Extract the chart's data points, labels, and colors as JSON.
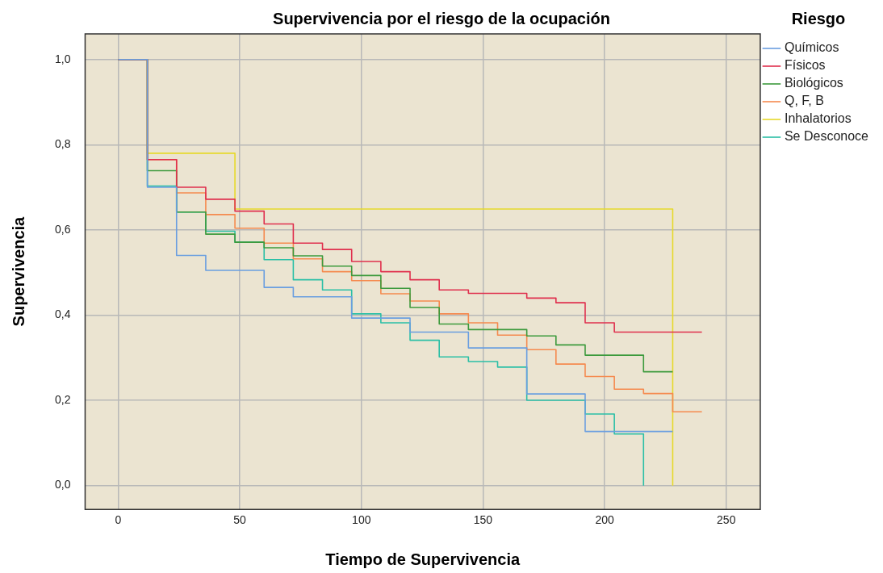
{
  "chart_data": {
    "type": "step",
    "title": "Supervivencia por el riesgo de la ocupación",
    "xlabel": "Tiempo de Supervivencia",
    "ylabel": "Supervivencia",
    "legend_title": "Riesgo",
    "legend": "right",
    "grid": true,
    "xlim": [
      -13.6,
      264
    ],
    "ylim": [
      -0.056,
      1.06
    ],
    "xticks": [
      0,
      50,
      100,
      150,
      200,
      250
    ],
    "yticks": [
      {
        "value": 0,
        "label": "0,0"
      },
      {
        "value": 0.2,
        "label": "0,2"
      },
      {
        "value": 0.4,
        "label": "0,4"
      },
      {
        "value": 0.6,
        "label": "0,6"
      },
      {
        "value": 0.8,
        "label": "0,8"
      },
      {
        "value": 1,
        "label": "1,0"
      }
    ],
    "series": [
      {
        "name": "Químicos",
        "color": "#6a9ee0",
        "x": [
          0,
          12,
          24,
          36,
          60,
          72,
          96,
          120,
          144,
          168,
          192,
          228
        ],
        "values": [
          1,
          0.7,
          0.54,
          0.505,
          0.465,
          0.443,
          0.393,
          0.36,
          0.323,
          0.215,
          0.127,
          0.127
        ]
      },
      {
        "name": "Físicos",
        "color": "#e0304e",
        "x": [
          0,
          12,
          24,
          36,
          48,
          60,
          72,
          84,
          96,
          108,
          120,
          132,
          144,
          168,
          180,
          192,
          204,
          240
        ],
        "values": [
          1,
          0.765,
          0.7,
          0.672,
          0.644,
          0.614,
          0.569,
          0.554,
          0.526,
          0.502,
          0.483,
          0.459,
          0.451,
          0.44,
          0.429,
          0.382,
          0.36,
          0.36
        ]
      },
      {
        "name": "Biológicos",
        "color": "#3d9a3d",
        "x": [
          0,
          12,
          24,
          36,
          48,
          60,
          72,
          84,
          96,
          108,
          120,
          132,
          144,
          168,
          180,
          192,
          216,
          228
        ],
        "values": [
          1,
          0.739,
          0.642,
          0.59,
          0.571,
          0.558,
          0.539,
          0.515,
          0.493,
          0.463,
          0.418,
          0.379,
          0.366,
          0.351,
          0.33,
          0.306,
          0.267,
          0.267
        ]
      },
      {
        "name": "Q, F, B",
        "color": "#f58a4f",
        "x": [
          0,
          12,
          24,
          36,
          48,
          60,
          72,
          84,
          96,
          108,
          120,
          132,
          144,
          156,
          168,
          180,
          192,
          204,
          216,
          228,
          240
        ],
        "values": [
          1,
          0.765,
          0.687,
          0.636,
          0.604,
          0.569,
          0.532,
          0.502,
          0.481,
          0.45,
          0.433,
          0.403,
          0.382,
          0.353,
          0.319,
          0.285,
          0.256,
          0.226,
          0.216,
          0.173,
          0.173
        ]
      },
      {
        "name": "Inhalatorios",
        "color": "#e6d92b",
        "x": [
          0,
          12,
          48,
          228
        ],
        "values": [
          1,
          0.78,
          0.649,
          0
        ]
      },
      {
        "name": "Se Desconoce",
        "color": "#2bbfa6",
        "x": [
          0,
          12,
          24,
          36,
          48,
          60,
          72,
          84,
          96,
          108,
          120,
          132,
          144,
          156,
          168,
          192,
          204,
          216
        ],
        "values": [
          1,
          0.703,
          0.642,
          0.597,
          0.571,
          0.53,
          0.483,
          0.459,
          0.403,
          0.382,
          0.341,
          0.302,
          0.291,
          0.278,
          0.2,
          0.168,
          0.121,
          0
        ]
      }
    ]
  }
}
